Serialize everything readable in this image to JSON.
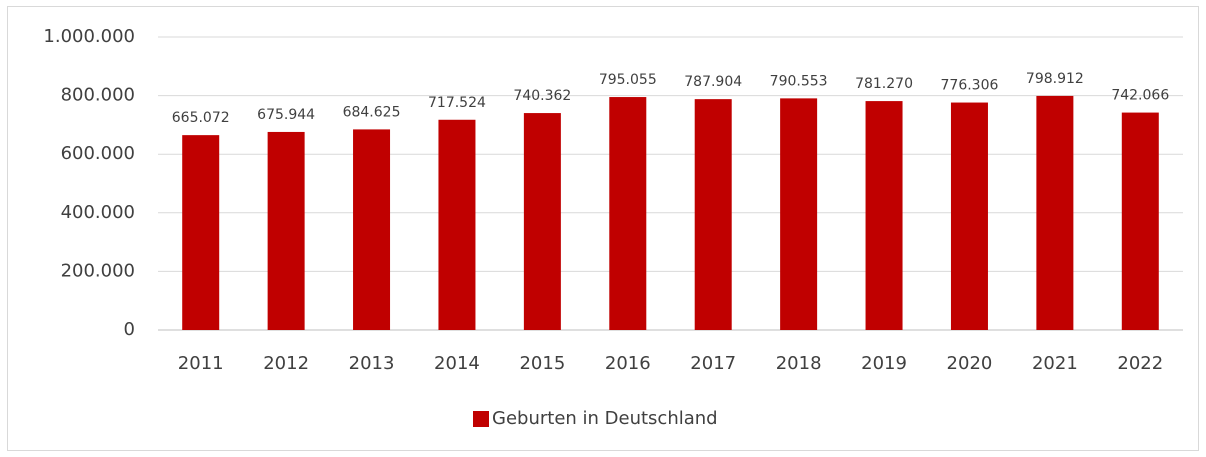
{
  "chart_data": {
    "type": "bar",
    "categories": [
      "2011",
      "2012",
      "2013",
      "2014",
      "2015",
      "2016",
      "2017",
      "2018",
      "2019",
      "2020",
      "2021",
      "2022"
    ],
    "series": [
      {
        "name": "Geburten in Deutschland",
        "color": "#c00000",
        "values": [
          665072,
          675944,
          684625,
          717524,
          740362,
          795055,
          787904,
          790553,
          781270,
          776306,
          798912,
          742066
        ],
        "value_labels": [
          "665.072",
          "675.944",
          "684.625",
          "717.524",
          "740.362",
          "795.055",
          "787.904",
          "790.553",
          "781.270",
          "776.306",
          "798.912",
          "742.066"
        ]
      }
    ],
    "ylim": [
      0,
      1000000
    ],
    "yticks": [
      0,
      {
        "value": 200000,
        "label": "200.000"
      },
      {
        "value": 400000,
        "label": "400.000"
      },
      {
        "value": 600000,
        "label": "600.000"
      },
      {
        "value": 800000,
        "label": "800.000"
      },
      {
        "value": 1000000,
        "label": "1.000.000"
      }
    ],
    "grid": true,
    "legend": "bottom"
  }
}
